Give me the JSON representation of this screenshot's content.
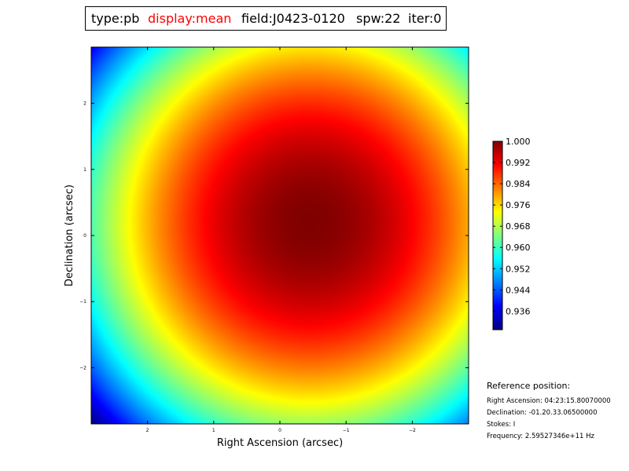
{
  "header": {
    "type": "type:pb",
    "display": "display:mean",
    "field": "field:J0423-0120",
    "spw": "spw:22",
    "iter": "iter:0",
    "display_color": "#ff0000"
  },
  "reference": {
    "heading": "Reference position:",
    "ra": "Right Ascension: 04:23:15.80070000",
    "dec": "Declination: -01.20.33.06500000",
    "stokes": "Stokes: I",
    "freq": "Frequency: 2.59527346e+11 Hz"
  },
  "chart_data": {
    "type": "heatmap",
    "colormap": "jet",
    "xlabel": "Right Ascension (arcsec)",
    "ylabel": "Declination (arcsec)",
    "xlim": [
      2.85,
      -2.85
    ],
    "ylim": [
      -2.85,
      2.85
    ],
    "xticks": [
      2,
      1,
      0,
      -1,
      -2
    ],
    "xtick_labels": [
      "2",
      "1",
      "0",
      "−1",
      "−2"
    ],
    "yticks": [
      2,
      1,
      0,
      -1,
      -2
    ],
    "ytick_labels": [
      "2",
      "1",
      "0",
      "−1",
      "−2"
    ],
    "beam_center": [
      -0.45,
      0.2
    ],
    "peak_value": 1.0,
    "corner_value": 0.929,
    "colorbar": {
      "vmin": 0.929,
      "vmax": 1.0,
      "ticks": [
        1.0,
        0.992,
        0.984,
        0.976,
        0.968,
        0.96,
        0.952,
        0.944,
        0.936
      ],
      "tick_labels": [
        "1.000",
        "0.992",
        "0.984",
        "0.976",
        "0.968",
        "0.960",
        "0.952",
        "0.944",
        "0.936"
      ]
    }
  }
}
